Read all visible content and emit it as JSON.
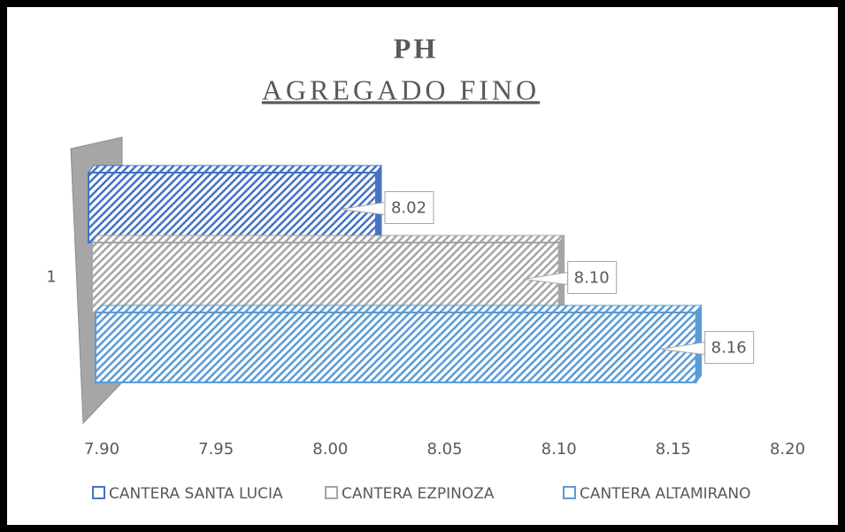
{
  "chart_data": {
    "type": "bar3d_horizontal",
    "title": "PH",
    "subtitle": "AGREGADO FINO",
    "categories": [
      "1"
    ],
    "series": [
      {
        "name": "CANTERA SANTA LUCIA",
        "color": "#4472c4",
        "values": [
          8.02
        ],
        "value_labels": [
          "8.02"
        ]
      },
      {
        "name": "CANTERA EZPINOZA",
        "color": "#a5a5a5",
        "values": [
          8.1
        ],
        "value_labels": [
          "8.10"
        ]
      },
      {
        "name": "CANTERA ALTAMIRANO",
        "color": "#5b9bd5",
        "values": [
          8.16
        ],
        "value_labels": [
          "8.16"
        ]
      }
    ],
    "xlim": [
      7.9,
      8.2
    ],
    "xticks": [
      {
        "value": 7.9,
        "label": "7.90"
      },
      {
        "value": 7.95,
        "label": "7.95"
      },
      {
        "value": 8.0,
        "label": "8.00"
      },
      {
        "value": 8.05,
        "label": "8.05"
      },
      {
        "value": 8.1,
        "label": "8.10"
      },
      {
        "value": 8.15,
        "label": "8.15"
      },
      {
        "value": 8.2,
        "label": "8.20"
      }
    ],
    "legend": "bottom"
  }
}
